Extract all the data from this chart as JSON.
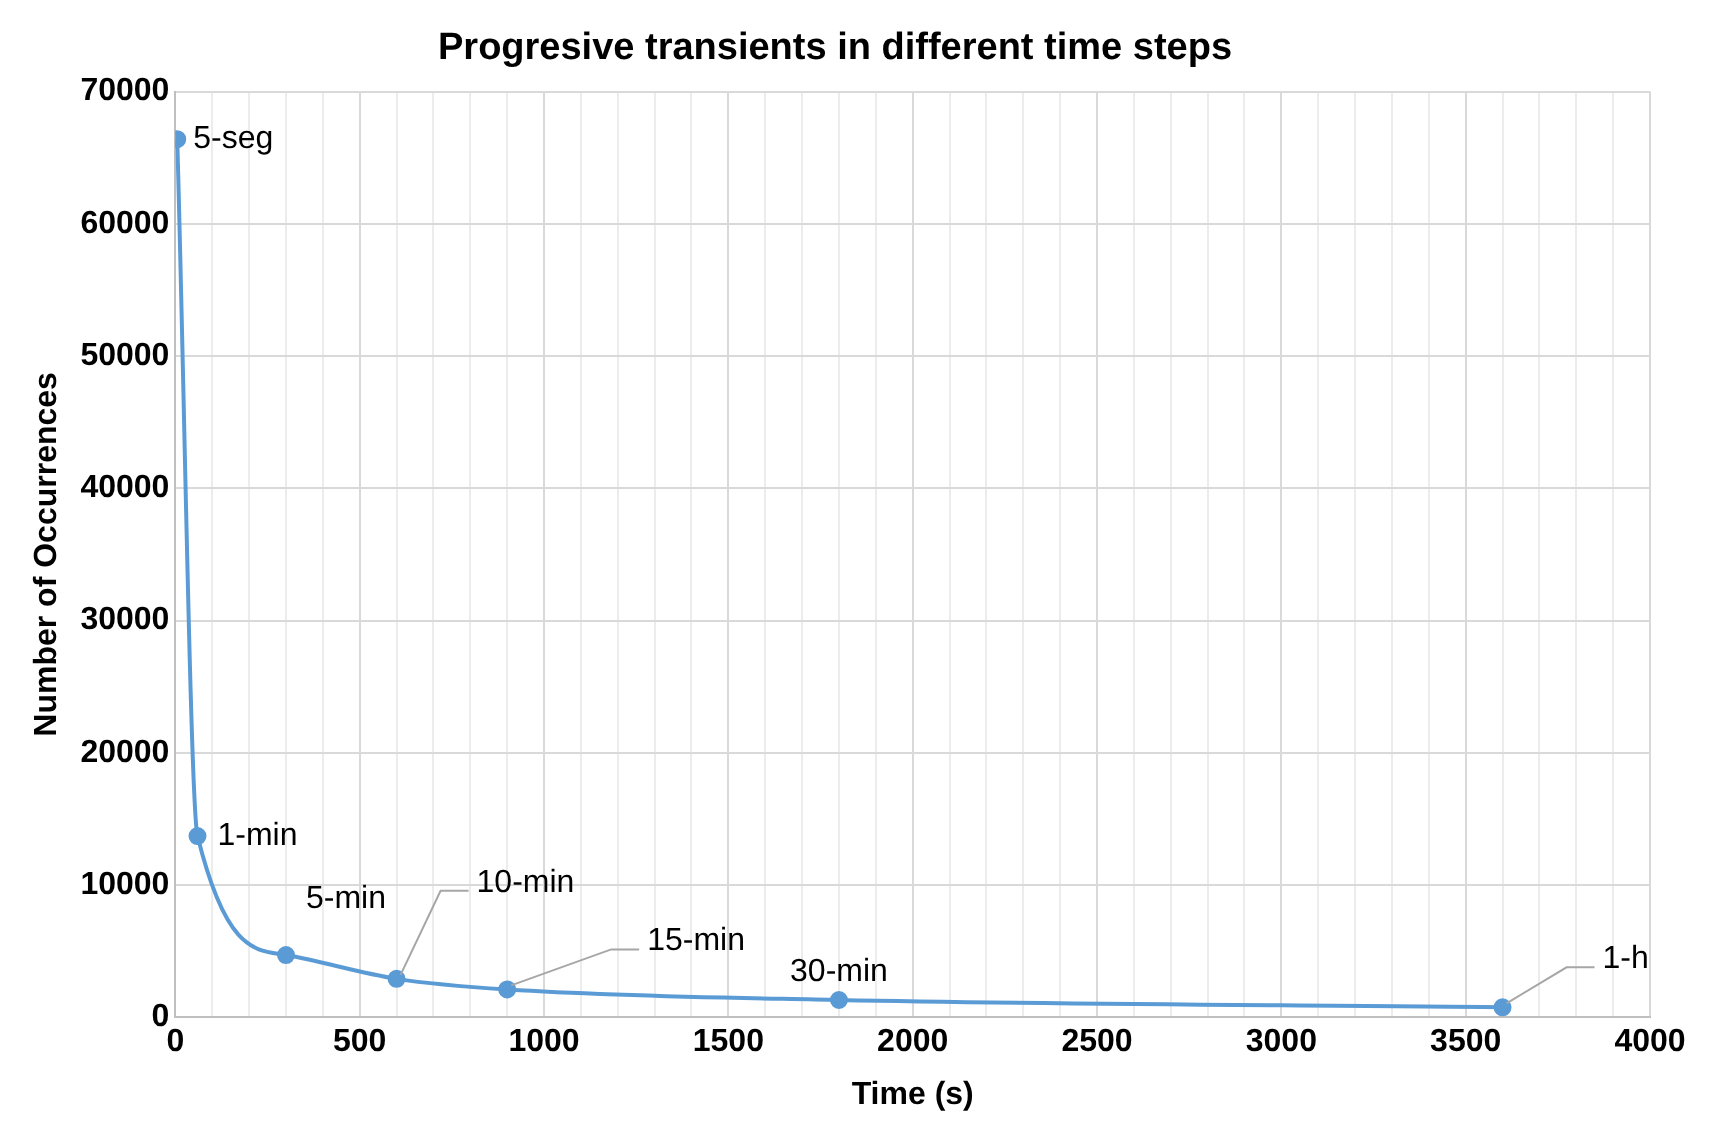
{
  "chart_data": {
    "type": "line",
    "title": "Progresive transients in different time steps",
    "xlabel": "Time (s)",
    "ylabel": "Number of Occurrences",
    "x": [
      5,
      60,
      300,
      600,
      900,
      1800,
      3600
    ],
    "series": [
      {
        "color": "#5b9bd5",
        "values": [
          66400,
          13700,
          4700,
          2900,
          2100,
          1300,
          750
        ]
      }
    ],
    "annotations": [
      {
        "text": "5-seg",
        "x": 5,
        "y": 66400
      },
      {
        "text": "1-min",
        "x": 60,
        "y": 13700
      },
      {
        "text": "5-min",
        "x": 300,
        "y": 4700
      },
      {
        "text": "10-min",
        "x": 600,
        "y": 2900
      },
      {
        "text": "15-min",
        "x": 900,
        "y": 2100
      },
      {
        "text": "30-min",
        "x": 1800,
        "y": 1300
      },
      {
        "text": "1-h",
        "x": 3600,
        "y": 750
      }
    ],
    "xlim": [
      0,
      4000
    ],
    "ylim": [
      0,
      70000
    ],
    "xticks": [
      0,
      {
        "value": 100,
        "label": null
      },
      {
        "value": 200,
        "label": null
      },
      {
        "value": 300,
        "label": null
      },
      {
        "value": 400,
        "label": null
      },
      500,
      {
        "value": 600,
        "label": null
      },
      {
        "value": 700,
        "label": null
      },
      {
        "value": 800,
        "label": null
      },
      {
        "value": 900,
        "label": null
      },
      1000,
      {
        "value": 1100,
        "label": null
      },
      {
        "value": 1200,
        "label": null
      },
      {
        "value": 1300,
        "label": null
      },
      {
        "value": 1400,
        "label": null
      },
      1500,
      {
        "value": 1600,
        "label": null
      },
      {
        "value": 1700,
        "label": null
      },
      {
        "value": 1800,
        "label": null
      },
      {
        "value": 1900,
        "label": null
      },
      2000,
      {
        "value": 2100,
        "label": null
      },
      {
        "value": 2200,
        "label": null
      },
      {
        "value": 2300,
        "label": null
      },
      {
        "value": 2400,
        "label": null
      },
      2500,
      {
        "value": 2600,
        "label": null
      },
      {
        "value": 2700,
        "label": null
      },
      {
        "value": 2800,
        "label": null
      },
      {
        "value": 2900,
        "label": null
      },
      3000,
      {
        "value": 3100,
        "label": null
      },
      {
        "value": 3200,
        "label": null
      },
      {
        "value": 3300,
        "label": null
      },
      {
        "value": 3400,
        "label": null
      },
      3500,
      {
        "value": 3600,
        "label": null
      },
      {
        "value": 3700,
        "label": null
      },
      {
        "value": 3800,
        "label": null
      },
      {
        "value": 3900,
        "label": null
      },
      4000
    ],
    "yticks": [
      0,
      10000,
      20000,
      30000,
      40000,
      50000,
      60000,
      70000
    ],
    "grid": true,
    "legend": false,
    "marker": "circle",
    "line_style": "solid"
  }
}
